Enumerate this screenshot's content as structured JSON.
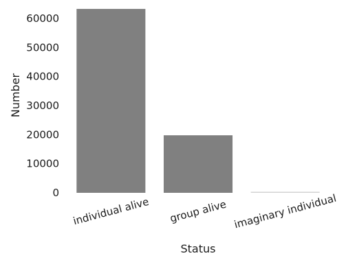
{
  "chart_data": {
    "type": "bar",
    "title": "",
    "xlabel": "Status",
    "ylabel": "Number",
    "categories": [
      "individual alive",
      "group alive",
      "imaginary individual"
    ],
    "values": [
      63300,
      19800,
      200
    ],
    "ylim": [
      0,
      64000
    ],
    "yticks": [
      0,
      10000,
      20000,
      30000,
      40000,
      50000,
      60000
    ],
    "ytick_labels": [
      "0",
      "10000",
      "20000",
      "30000",
      "40000",
      "50000",
      "60000"
    ],
    "bar_color": "#808080",
    "background_color": "#ffffff",
    "grid": false,
    "legend": "none"
  }
}
